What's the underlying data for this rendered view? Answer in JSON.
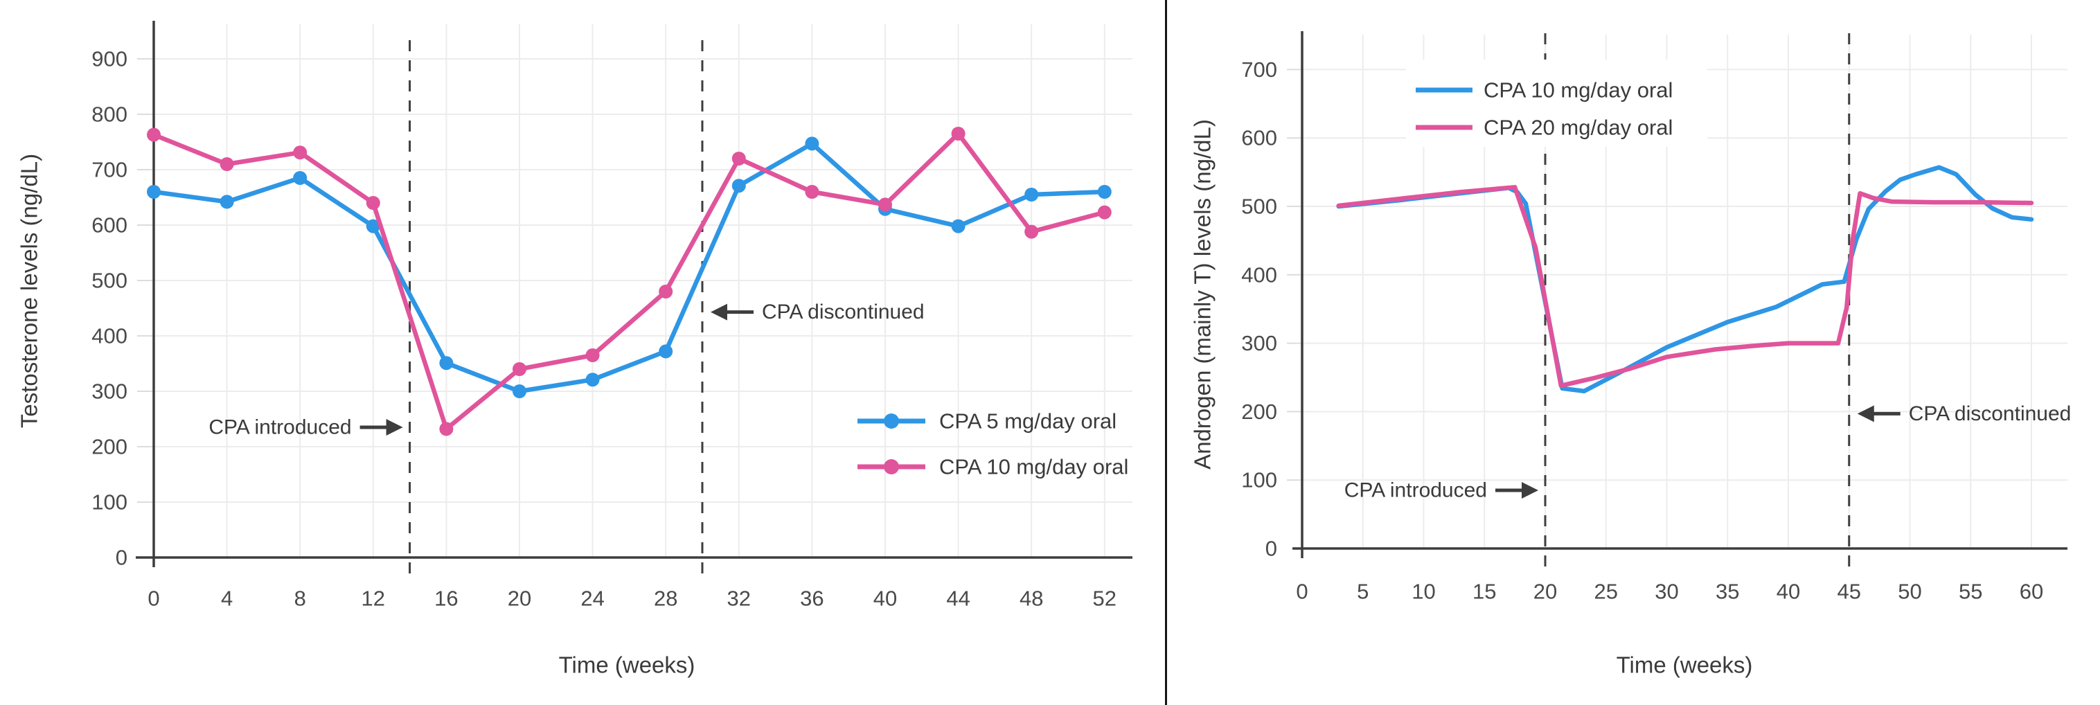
{
  "figure": {
    "background": "#ffffff",
    "divider_color": "#161616"
  },
  "colors": {
    "blue": "#2e96e5",
    "pink": "#e0549b",
    "axis": "#3d3d3d",
    "grid": "#ececec",
    "tick_stub": "#dcdcdc",
    "tick_text": "#4a4a4a",
    "text": "#3a3a3a"
  },
  "chart_data": [
    {
      "type": "line",
      "panel": "left",
      "title": "",
      "xlabel": "Time (weeks)",
      "ylabel": "Testosterone levels (ng/dL)",
      "xlim": [
        0,
        53.5
      ],
      "ylim": [
        0,
        960
      ],
      "grid": true,
      "markers": true,
      "legend_position": "inside lower right",
      "xticks": [
        0,
        4,
        8,
        12,
        16,
        20,
        24,
        28,
        32,
        36,
        40,
        44,
        48,
        52
      ],
      "yticks": [
        0,
        100,
        200,
        300,
        400,
        500,
        600,
        700,
        800,
        900
      ],
      "x": [
        0,
        4,
        8,
        12,
        16,
        20,
        24,
        28,
        32,
        36,
        40,
        44,
        48,
        52
      ],
      "series": [
        {
          "name": "CPA 5 mg/day oral",
          "color_key": "blue",
          "values": [
            660,
            642,
            685,
            598,
            351,
            300,
            321,
            372,
            671,
            747,
            629,
            598,
            655,
            660
          ]
        },
        {
          "name": "CPA 10 mg/day oral",
          "color_key": "pink",
          "values": [
            763,
            710,
            731,
            640,
            232,
            340,
            365,
            480,
            720,
            660,
            637,
            765,
            588,
            623
          ]
        }
      ],
      "vlines": [
        14,
        30
      ],
      "annotations": [
        {
          "text": "CPA introduced",
          "side": "right",
          "week": 14,
          "value": 235
        },
        {
          "text": "CPA discontinued",
          "side": "left",
          "week": 30,
          "value": 443
        }
      ]
    },
    {
      "type": "line",
      "panel": "right",
      "title": "",
      "xlabel": "Time (weeks)",
      "ylabel": "Androgen (mainly T) levels (ng/dL)",
      "xlim": [
        0,
        62
      ],
      "ylim": [
        0,
        750
      ],
      "grid": true,
      "markers": false,
      "legend_position": "inside upper left",
      "xticks": [
        0,
        5,
        10,
        15,
        20,
        25,
        30,
        35,
        40,
        45,
        50,
        55,
        60
      ],
      "yticks": [
        0,
        100,
        200,
        300,
        400,
        500,
        600,
        700
      ],
      "series": [
        {
          "name": "CPA 10 mg/day oral",
          "color_key": "blue",
          "points": [
            [
              3,
              500
            ],
            [
              8,
              509
            ],
            [
              13,
              519
            ],
            [
              17,
              527
            ],
            [
              17.7,
              521
            ],
            [
              18.4,
              504
            ],
            [
              21.4,
              234
            ],
            [
              23.2,
              230
            ],
            [
              26,
              256
            ],
            [
              30,
              294
            ],
            [
              35,
              331
            ],
            [
              39,
              353
            ],
            [
              42.8,
              386
            ],
            [
              44.6,
              390
            ],
            [
              45.6,
              452
            ],
            [
              46.6,
              496
            ],
            [
              48,
              522
            ],
            [
              49.2,
              539
            ],
            [
              50.5,
              547
            ],
            [
              52.4,
              557
            ],
            [
              53.8,
              547
            ],
            [
              55.4,
              517
            ],
            [
              56.8,
              497
            ],
            [
              58.4,
              484
            ],
            [
              60,
              481
            ]
          ]
        },
        {
          "name": "CPA 20 mg/day oral",
          "color_key": "pink",
          "points": [
            [
              3,
              501
            ],
            [
              8,
              511
            ],
            [
              13,
              521
            ],
            [
              17.5,
              528
            ],
            [
              19.2,
              440
            ],
            [
              21.3,
              238
            ],
            [
              24,
              249
            ],
            [
              27,
              263
            ],
            [
              30,
              280
            ],
            [
              34,
              291
            ],
            [
              37,
              296
            ],
            [
              40,
              300
            ],
            [
              44.1,
              300
            ],
            [
              44.8,
              352
            ],
            [
              45.3,
              452
            ],
            [
              45.9,
              519
            ],
            [
              47,
              512
            ],
            [
              48.5,
              507
            ],
            [
              52,
              506
            ],
            [
              56,
              506
            ],
            [
              60,
              505
            ]
          ]
        }
      ],
      "vlines": [
        20,
        45
      ],
      "annotations": [
        {
          "text": "CPA introduced",
          "side": "right",
          "week": 20,
          "value": 85
        },
        {
          "text": "CPA discontinued",
          "side": "left",
          "week": 45,
          "value": 197
        }
      ]
    }
  ]
}
